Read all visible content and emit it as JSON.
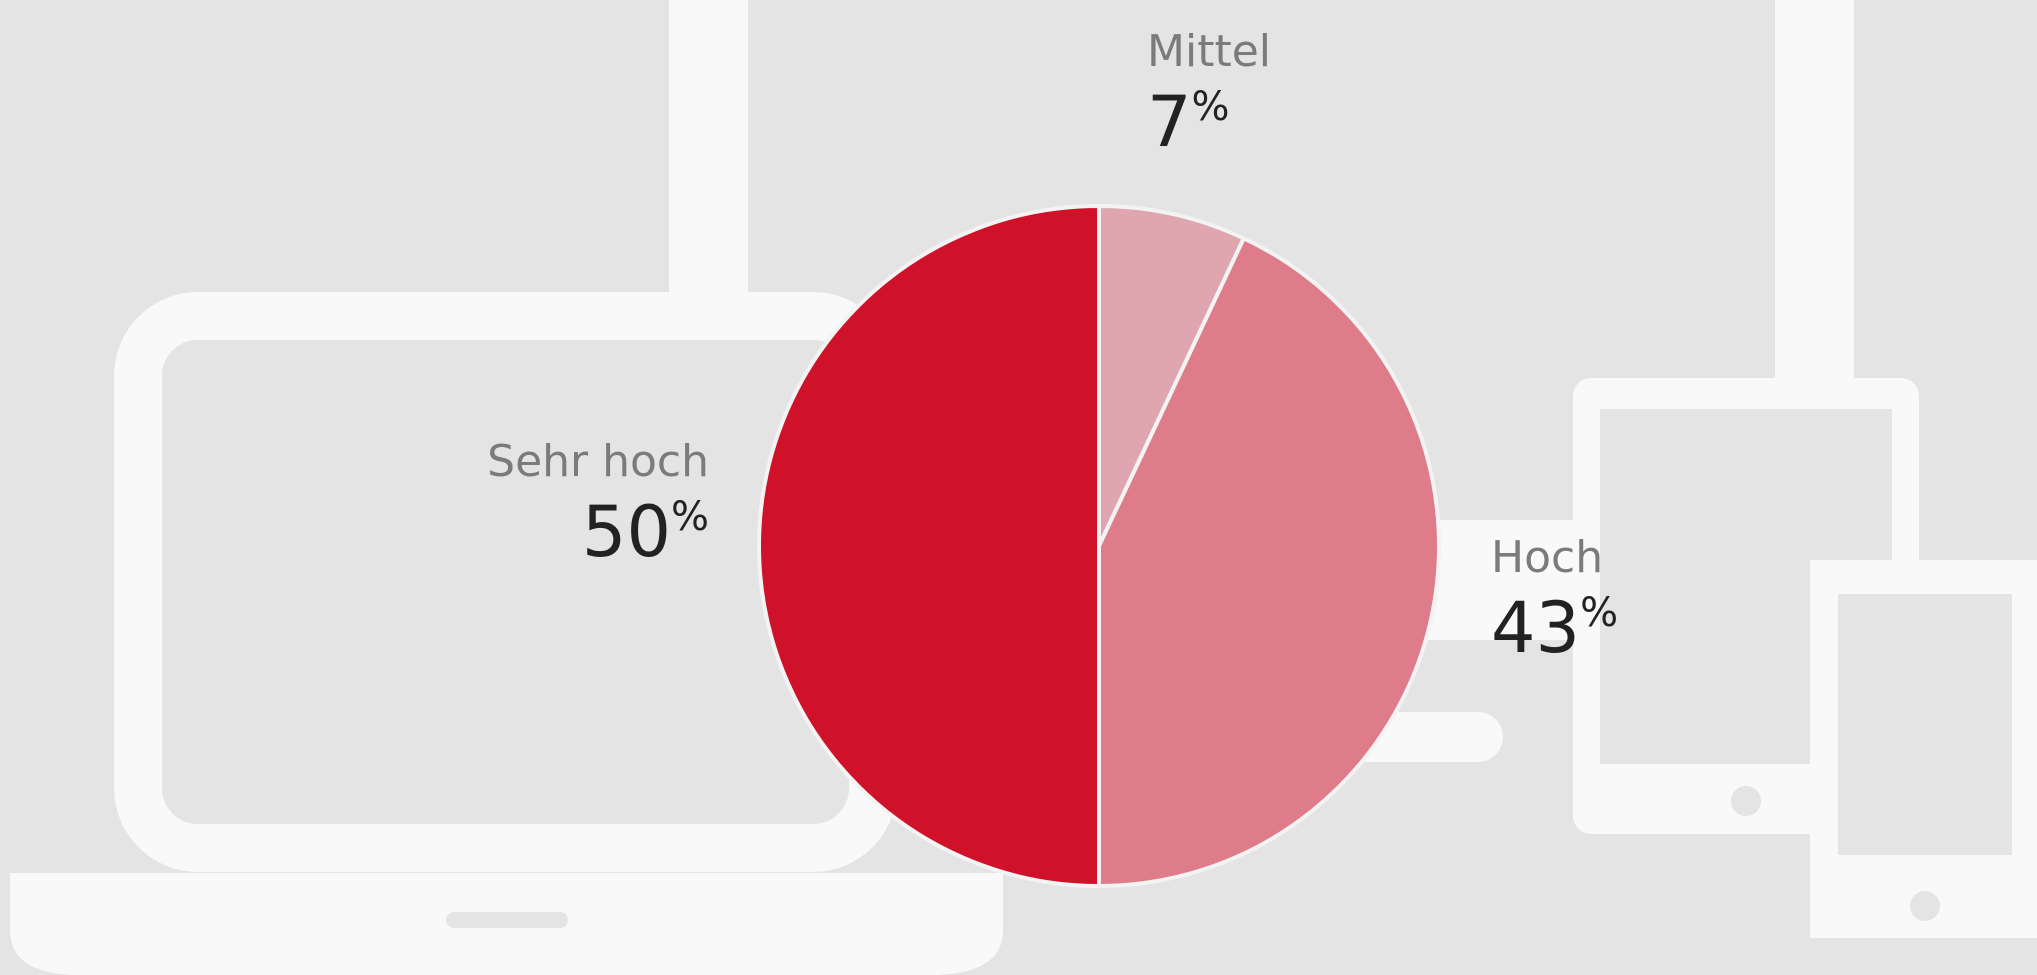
{
  "chart_data": {
    "type": "pie",
    "categories": [
      "Mittel",
      "Hoch",
      "Sehr hoch"
    ],
    "values": [
      7,
      43,
      50
    ],
    "value_suffix": "%",
    "colors": [
      "#dfa6af",
      "#df7c8a",
      "#cf1129"
    ]
  }
}
